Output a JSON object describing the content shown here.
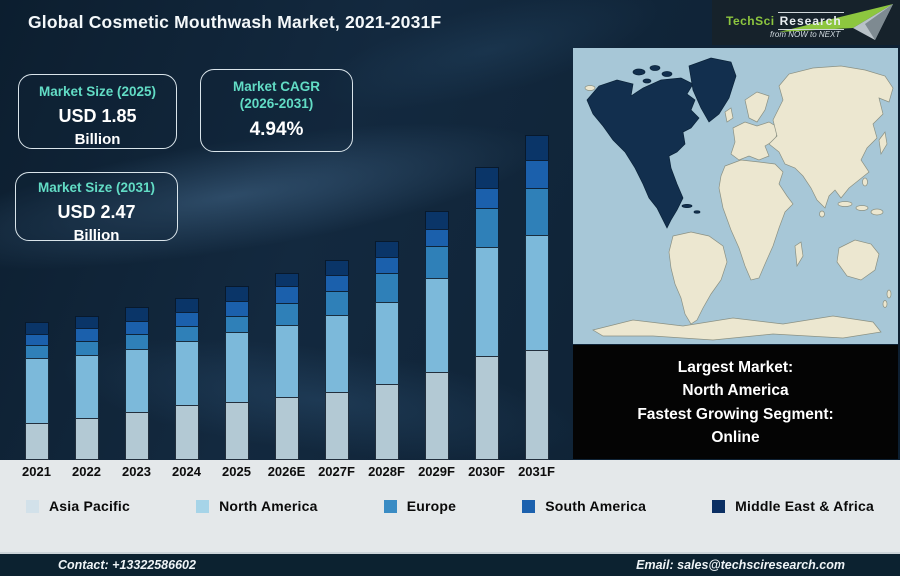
{
  "title": "Global Cosmetic Mouthwash Market, 2021-2031F",
  "logo": {
    "brand_primary": "TechSci",
    "brand_secondary": "Research",
    "tagline": "from NOW to NEXT",
    "brand_green": "#8dc63f"
  },
  "stat_boxes": [
    {
      "label": "Market Size (2025)",
      "value": "USD 1.85",
      "unit": "Billion"
    },
    {
      "label": "Market CAGR",
      "label2": "(2026-2031)",
      "value": "4.94%"
    },
    {
      "label": "Market Size (2031)",
      "value": "USD 2.47",
      "unit": "Billion"
    }
  ],
  "chart_data": {
    "type": "bar",
    "variant": "stacked",
    "title": "Global Cosmetic Mouthwash Market, 2021-2031F",
    "categories": [
      "2021",
      "2022",
      "2023",
      "2024",
      "2025",
      "2026E",
      "2027F",
      "2028F",
      "2029F",
      "2030F",
      "2031F"
    ],
    "series": [
      {
        "name": "Asia Pacific",
        "color": "#b3c9d4",
        "legend_color": "#d2e1ea",
        "values": [
          37,
          42,
          48,
          55,
          58,
          63,
          68,
          76,
          88,
          104,
          110
        ]
      },
      {
        "name": "North America",
        "color": "#7cb9da",
        "legend_color": "#a6d4e8",
        "values": [
          65,
          63,
          63,
          64,
          70,
          72,
          77,
          82,
          94,
          109,
          115
        ]
      },
      {
        "name": "Europe",
        "color": "#2f80b8",
        "legend_color": "#3a8cc4",
        "values": [
          13,
          14,
          15,
          15,
          16,
          22,
          24,
          29,
          32,
          39,
          47
        ]
      },
      {
        "name": "South America",
        "color": "#1b60ac",
        "legend_color": "#1c61ae",
        "values": [
          11,
          13,
          13,
          14,
          15,
          17,
          16,
          16,
          17,
          20,
          28
        ]
      },
      {
        "name": "Middle East & Africa",
        "color": "#0a3568",
        "legend_color": "#0b2f63",
        "values": [
          12,
          12,
          14,
          14,
          15,
          13,
          15,
          16,
          18,
          21,
          25
        ]
      }
    ],
    "units": "relative bar-segment heights in px (illustrative chart, no value axis shown)",
    "known_values": {
      "market_size_2025_usd_billion": 1.85,
      "market_size_2031_usd_billion": 2.47,
      "cagr_2026_2031_percent": 4.94
    },
    "xlabel": "",
    "ylabel": "",
    "grid": false,
    "legend_position": "bottom"
  },
  "map": {
    "highlighted_region": "North America",
    "ocean_color": "#a7c7d7",
    "land_color": "#ece7d0",
    "outline_color": "#8b9183",
    "highlight_color": "#122f4e",
    "highlight_outline": "#0a2238"
  },
  "highlight_box": {
    "lines": [
      "Largest Market:",
      "North America",
      "Fastest Growing Segment:",
      "Online"
    ]
  },
  "footer": {
    "contact": "Contact: +13322586602",
    "email": "Email: sales@techsciresearch.com"
  },
  "colors": {
    "background": "#11273c",
    "accent_teal": "#62dcc5",
    "strip": "#e4e8ea",
    "footer_bg": "#0c2230",
    "title_text": "#f4f8fa"
  }
}
